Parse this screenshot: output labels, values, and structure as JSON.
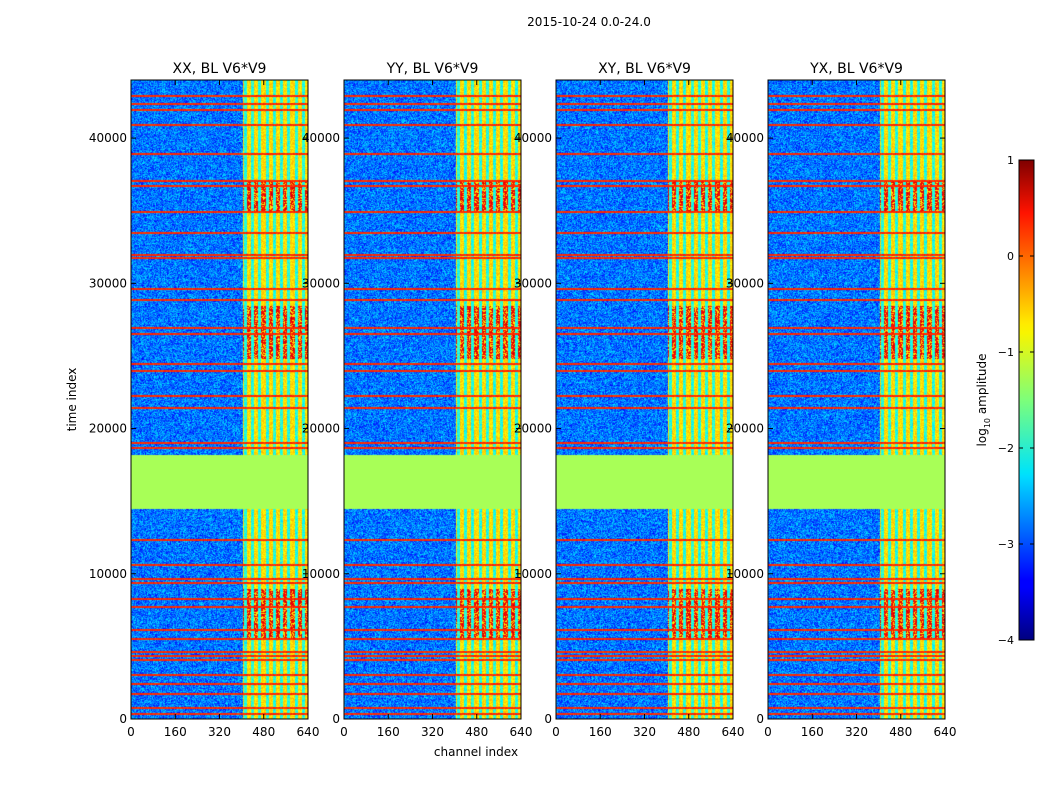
{
  "figure": {
    "suptitle": "2015-10-24 0.0-24.0"
  },
  "chart_data": {
    "type": "heatmap",
    "suptitle": "2015-10-24 0.0-24.0",
    "xlabel": "channel index",
    "ylabel": "time index",
    "xlim": [
      0,
      640
    ],
    "ylim": [
      0,
      44000
    ],
    "x_ticks": [
      0,
      160,
      320,
      480,
      640
    ],
    "y_ticks": [
      0,
      10000,
      20000,
      30000,
      40000
    ],
    "panels": [
      {
        "title": "XX, BL V6*V9",
        "show_ylabel": true,
        "show_xlabel": false
      },
      {
        "title": "YY, BL V6*V9",
        "show_ylabel": false,
        "show_xlabel": true
      },
      {
        "title": "XY, BL V6*V9",
        "show_ylabel": false,
        "show_xlabel": false
      },
      {
        "title": "YX, BL V6*V9",
        "show_ylabel": false,
        "show_xlabel": false
      }
    ],
    "bright_channel_band": [
      405,
      640
    ],
    "flagged_time_block": [
      14500,
      18200
    ],
    "flagged_value": -1.3,
    "rfi_time_rows": [
      420,
      850,
      1800,
      2500,
      3100,
      4100,
      4400,
      4700,
      5600,
      6200,
      7800,
      8300,
      9400,
      9700,
      10700,
      12400,
      18700,
      19100,
      21500,
      22300,
      24000,
      24500,
      26600,
      27000,
      28900,
      29700,
      31800,
      32000,
      33500,
      35000,
      36800,
      37100,
      39000,
      41000,
      42000,
      42400,
      43000
    ],
    "hot_time_ranges": [
      [
        24800,
        28500
      ],
      [
        5500,
        9000
      ],
      [
        35000,
        37000
      ]
    ],
    "colorbar": {
      "label_prefix": "log",
      "label_sub": "10",
      "label_suffix": " amplitude",
      "min": -4,
      "max": 1,
      "ticks": [
        1,
        0,
        -1,
        -2,
        -3,
        -4
      ],
      "tick_labels": [
        "1",
        "0",
        "−1",
        "−2",
        "−3",
        "−4"
      ],
      "colormap": "jet"
    }
  }
}
